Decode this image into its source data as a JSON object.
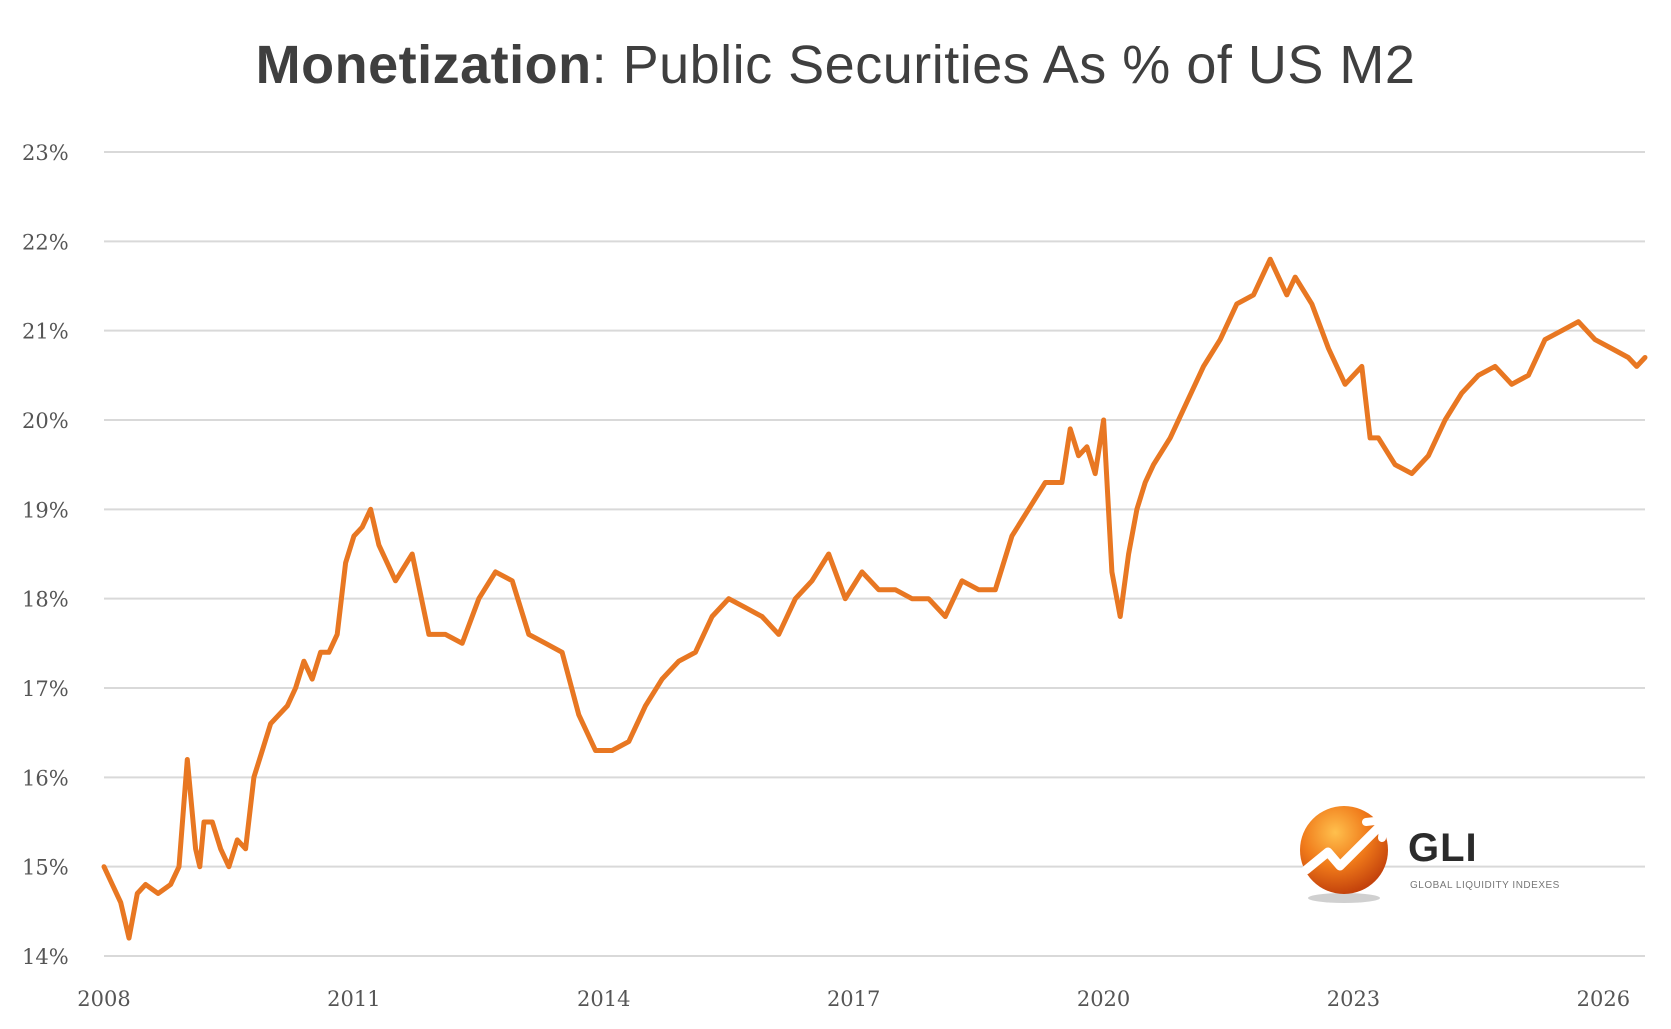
{
  "title": {
    "bold_part": "Monetization",
    "rest": ": Public Securities As % of US M2"
  },
  "logo": {
    "name": "GLI",
    "subtitle": "GLOBAL LIQUIDITY INDEXES",
    "icon": "orange-sphere-trend-icon"
  },
  "colors": {
    "line": "#E87722",
    "grid": "#D9D9D9",
    "text": "#3F3F3F"
  },
  "chart_data": {
    "type": "line",
    "title": "Monetization: Public Securities As % of US M2",
    "xlabel": "",
    "ylabel": "",
    "xlim": [
      2008,
      2026.5
    ],
    "ylim": [
      14,
      23
    ],
    "x_ticks": [
      2008,
      2011,
      2014,
      2017,
      2020,
      2023,
      2026
    ],
    "y_ticks": [
      14,
      15,
      16,
      17,
      18,
      19,
      20,
      21,
      22,
      23
    ],
    "y_tick_labels": [
      "14%",
      "15%",
      "16%",
      "17%",
      "18%",
      "19%",
      "20%",
      "21%",
      "22%",
      "23%"
    ],
    "grid": "horizontal",
    "series": [
      {
        "name": "",
        "x": [
          2008.0,
          2008.1,
          2008.2,
          2008.3,
          2008.4,
          2008.5,
          2008.65,
          2008.8,
          2008.9,
          2009.0,
          2009.1,
          2009.15,
          2009.2,
          2009.3,
          2009.4,
          2009.5,
          2009.6,
          2009.7,
          2009.8,
          2009.9,
          2010.0,
          2010.1,
          2010.2,
          2010.3,
          2010.4,
          2010.5,
          2010.6,
          2010.7,
          2010.8,
          2010.9,
          2011.0,
          2011.1,
          2011.2,
          2011.3,
          2011.5,
          2011.7,
          2011.9,
          2012.1,
          2012.3,
          2012.5,
          2012.7,
          2012.9,
          2013.1,
          2013.3,
          2013.5,
          2013.7,
          2013.9,
          2014.1,
          2014.3,
          2014.5,
          2014.7,
          2014.9,
          2015.1,
          2015.3,
          2015.5,
          2015.7,
          2015.9,
          2016.1,
          2016.3,
          2016.5,
          2016.7,
          2016.9,
          2017.1,
          2017.3,
          2017.5,
          2017.7,
          2017.9,
          2018.1,
          2018.3,
          2018.5,
          2018.7,
          2018.9,
          2019.1,
          2019.3,
          2019.5,
          2019.6,
          2019.7,
          2019.8,
          2019.9,
          2020.0,
          2020.1,
          2020.2,
          2020.3,
          2020.4,
          2020.5,
          2020.6,
          2020.8,
          2021.0,
          2021.2,
          2021.4,
          2021.6,
          2021.8,
          2022.0,
          2022.1,
          2022.2,
          2022.3,
          2022.5,
          2022.7,
          2022.9,
          2023.1,
          2023.2,
          2023.3,
          2023.5,
          2023.7,
          2023.9,
          2024.1,
          2024.3,
          2024.5,
          2024.7,
          2024.9,
          2025.1,
          2025.3,
          2025.5,
          2025.7,
          2025.9,
          2026.1,
          2026.3,
          2026.4,
          2026.5
        ],
        "y": [
          15.0,
          14.8,
          14.6,
          14.2,
          14.7,
          14.8,
          14.7,
          14.8,
          15.0,
          16.2,
          15.2,
          15.0,
          15.5,
          15.5,
          15.2,
          15.0,
          15.3,
          15.2,
          16.0,
          16.3,
          16.6,
          16.7,
          16.8,
          17.0,
          17.3,
          17.1,
          17.4,
          17.4,
          17.6,
          18.4,
          18.7,
          18.8,
          19.0,
          18.6,
          18.2,
          18.5,
          17.6,
          17.6,
          17.5,
          18.0,
          18.3,
          18.2,
          17.6,
          17.5,
          17.4,
          16.7,
          16.3,
          16.3,
          16.4,
          16.8,
          17.1,
          17.3,
          17.4,
          17.8,
          18.0,
          17.9,
          17.8,
          17.6,
          18.0,
          18.2,
          18.5,
          18.0,
          18.3,
          18.1,
          18.1,
          18.0,
          18.0,
          17.8,
          18.2,
          18.1,
          18.1,
          18.7,
          19.0,
          19.3,
          19.3,
          19.9,
          19.6,
          19.7,
          19.4,
          20.0,
          18.3,
          17.8,
          18.5,
          19.0,
          19.3,
          19.5,
          19.8,
          20.2,
          20.6,
          20.9,
          21.3,
          21.4,
          21.8,
          21.6,
          21.4,
          21.6,
          21.3,
          20.8,
          20.4,
          20.6,
          19.8,
          19.8,
          19.5,
          19.4,
          19.6,
          20.0,
          20.3,
          20.5,
          20.6,
          20.4,
          20.5,
          20.9,
          21.0,
          21.1,
          20.9,
          20.8,
          20.7,
          20.6,
          20.7
        ]
      }
    ]
  }
}
